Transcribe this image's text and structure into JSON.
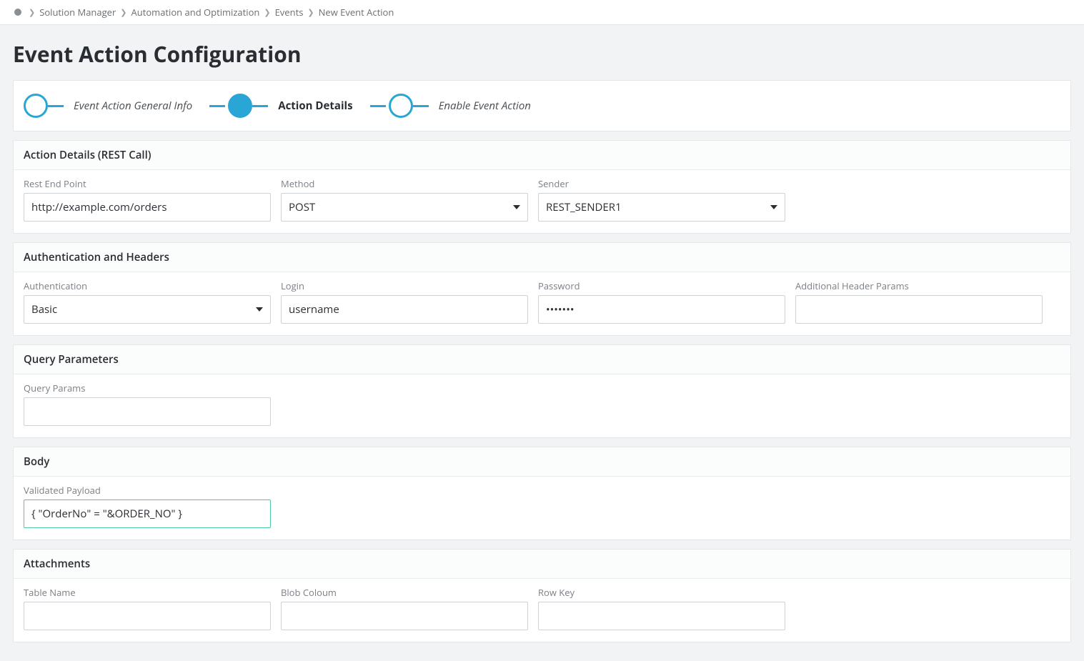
{
  "breadcrumb": {
    "items": [
      "Solution Manager",
      "Automation and Optimization",
      "Events",
      "New Event Action"
    ]
  },
  "page": {
    "title": "Event Action Configuration"
  },
  "wizard": {
    "steps": [
      {
        "label": "Event Action General Info",
        "active": false
      },
      {
        "label": "Action Details",
        "active": true
      },
      {
        "label": "Enable Event Action",
        "active": false
      }
    ]
  },
  "sections": {
    "actionDetails": {
      "title": "Action Details (REST Call)",
      "restEndpoint": {
        "label": "Rest End Point",
        "value": "http://example.com/orders"
      },
      "method": {
        "label": "Method",
        "value": "POST"
      },
      "sender": {
        "label": "Sender",
        "value": "REST_SENDER1"
      }
    },
    "auth": {
      "title": "Authentication and Headers",
      "authentication": {
        "label": "Authentication",
        "value": "Basic"
      },
      "login": {
        "label": "Login",
        "value": "username"
      },
      "password": {
        "label": "Password",
        "value": "•••••••"
      },
      "additional": {
        "label": "Additional Header Params",
        "value": ""
      }
    },
    "query": {
      "title": "Query Parameters",
      "queryParams": {
        "label": "Query Params",
        "value": ""
      }
    },
    "body": {
      "title": "Body",
      "payload": {
        "label": "Validated Payload",
        "value": "{ \"OrderNo\" = \"&ORDER_NO\" }"
      }
    },
    "attachments": {
      "title": "Attachments",
      "tableName": {
        "label": "Table Name",
        "value": ""
      },
      "blobColumn": {
        "label": "Blob Coloum",
        "value": ""
      },
      "rowKey": {
        "label": "Row Key",
        "value": ""
      }
    }
  },
  "colors": {
    "accent": "#2aa6d6",
    "validatedBorder": "#4fc9a3",
    "pageBackground": "#f2f3f4",
    "panelBorder": "#e4e6e8",
    "labelText": "#7a7f85"
  }
}
